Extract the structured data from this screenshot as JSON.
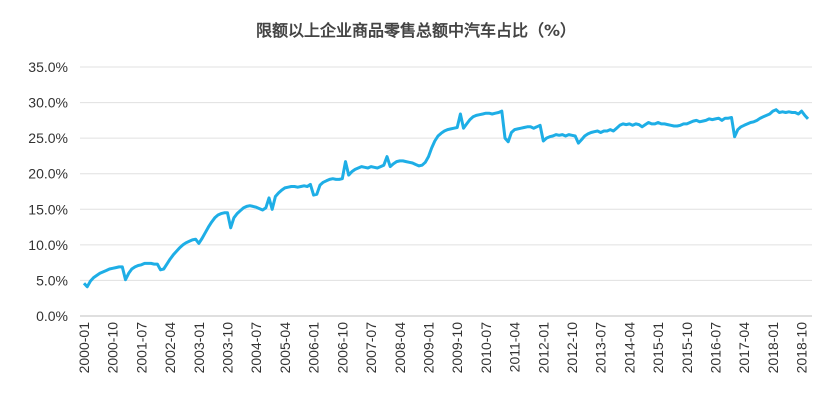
{
  "chart_data": {
    "type": "line",
    "title": "限额以上企业商品零售总额中汽车占比（%）",
    "categories": [
      "2000-01",
      null,
      null,
      null,
      null,
      null,
      null,
      null,
      null,
      "2000-10",
      null,
      null,
      null,
      null,
      null,
      null,
      null,
      null,
      "2001-07",
      null,
      null,
      null,
      null,
      null,
      null,
      null,
      null,
      "2002-04",
      null,
      null,
      null,
      null,
      null,
      null,
      null,
      null,
      "2003-01",
      null,
      null,
      null,
      null,
      null,
      null,
      null,
      null,
      "2003-10",
      null,
      null,
      null,
      null,
      null,
      null,
      null,
      null,
      "2004-07",
      null,
      null,
      null,
      null,
      null,
      null,
      null,
      null,
      "2005-04",
      null,
      null,
      null,
      null,
      null,
      null,
      null,
      null,
      "2006-01",
      null,
      null,
      null,
      null,
      null,
      null,
      null,
      null,
      "2006-10",
      null,
      null,
      null,
      null,
      null,
      null,
      null,
      null,
      "2007-07",
      null,
      null,
      null,
      null,
      null,
      null,
      null,
      null,
      "2008-04",
      null,
      null,
      null,
      null,
      null,
      null,
      null,
      null,
      "2009-01",
      null,
      null,
      null,
      null,
      null,
      null,
      null,
      null,
      "2009-10",
      null,
      null,
      null,
      null,
      null,
      null,
      null,
      null,
      "2010-07",
      null,
      null,
      null,
      null,
      null,
      null,
      null,
      null,
      "2011-04",
      null,
      null,
      null,
      null,
      null,
      null,
      null,
      null,
      "2012-01",
      null,
      null,
      null,
      null,
      null,
      null,
      null,
      null,
      "2012-10",
      null,
      null,
      null,
      null,
      null,
      null,
      null,
      null,
      "2013-07",
      null,
      null,
      null,
      null,
      null,
      null,
      null,
      null,
      "2014-04",
      null,
      null,
      null,
      null,
      null,
      null,
      null,
      null,
      "2015-01",
      null,
      null,
      null,
      null,
      null,
      null,
      null,
      null,
      "2015-10",
      null,
      null,
      null,
      null,
      null,
      null,
      null,
      null,
      "2016-07",
      null,
      null,
      null,
      null,
      null,
      null,
      null,
      null,
      "2017-04",
      null,
      null,
      null,
      null,
      null,
      null,
      null,
      null,
      "2018-01",
      null,
      null,
      null,
      null,
      null,
      null,
      null,
      null,
      "2018-10",
      null,
      null
    ],
    "series": [
      {
        "color": "#1eaee6",
        "values": [
          4.6,
          4.1,
          4.9,
          5.4,
          5.7,
          6.0,
          6.2,
          6.4,
          6.6,
          6.7,
          6.8,
          6.9,
          6.9,
          5.1,
          6.0,
          6.6,
          6.9,
          7.1,
          7.2,
          7.4,
          7.4,
          7.4,
          7.3,
          7.3,
          6.5,
          6.6,
          7.3,
          8.0,
          8.6,
          9.1,
          9.6,
          10.0,
          10.3,
          10.5,
          10.7,
          10.8,
          10.2,
          10.9,
          11.7,
          12.5,
          13.2,
          13.8,
          14.2,
          14.4,
          14.5,
          14.5,
          12.4,
          13.8,
          14.4,
          14.8,
          15.2,
          15.4,
          15.5,
          15.4,
          15.3,
          15.1,
          14.9,
          15.2,
          16.6,
          15.0,
          16.8,
          17.3,
          17.7,
          18.0,
          18.1,
          18.2,
          18.2,
          18.1,
          18.2,
          18.3,
          18.2,
          18.5,
          17.0,
          17.1,
          18.4,
          18.8,
          19.0,
          19.2,
          19.3,
          19.2,
          19.2,
          19.3,
          21.7,
          19.8,
          20.3,
          20.6,
          20.8,
          21.0,
          20.9,
          20.8,
          21.0,
          20.9,
          20.8,
          21.0,
          21.2,
          22.4,
          21.0,
          21.4,
          21.7,
          21.8,
          21.8,
          21.7,
          21.6,
          21.5,
          21.3,
          21.1,
          21.2,
          21.6,
          22.4,
          23.6,
          24.6,
          25.3,
          25.7,
          26.0,
          26.2,
          26.3,
          26.4,
          26.5,
          28.4,
          26.4,
          27.0,
          27.6,
          28.0,
          28.2,
          28.3,
          28.4,
          28.5,
          28.5,
          28.4,
          28.5,
          28.6,
          28.8,
          25.0,
          24.5,
          25.8,
          26.2,
          26.3,
          26.4,
          26.5,
          26.6,
          26.6,
          26.4,
          26.6,
          26.8,
          24.6,
          25.0,
          25.2,
          25.3,
          25.5,
          25.4,
          25.5,
          25.3,
          25.5,
          25.4,
          25.3,
          24.3,
          24.8,
          25.3,
          25.6,
          25.8,
          25.9,
          26.0,
          25.8,
          26.0,
          26.0,
          26.2,
          26.0,
          26.4,
          26.8,
          27.0,
          26.9,
          27.0,
          26.8,
          27.0,
          26.9,
          26.6,
          26.9,
          27.2,
          27.0,
          27.0,
          27.2,
          27.0,
          27.0,
          26.9,
          26.8,
          26.7,
          26.7,
          26.8,
          27.0,
          27.0,
          27.2,
          27.4,
          27.5,
          27.3,
          27.4,
          27.5,
          27.7,
          27.6,
          27.7,
          27.8,
          27.5,
          27.8,
          27.8,
          27.9,
          25.2,
          26.2,
          26.6,
          26.8,
          27.0,
          27.2,
          27.3,
          27.5,
          27.8,
          28.0,
          28.2,
          28.4,
          28.8,
          29.0,
          28.6,
          28.7,
          28.6,
          28.7,
          28.6,
          28.6,
          28.4,
          28.8,
          28.2,
          27.7
        ]
      }
    ],
    "ylim": [
      0,
      35
    ],
    "yticks": [
      {
        "value": 0,
        "label": "0.0%"
      },
      {
        "value": 5,
        "label": "5.0%"
      },
      {
        "value": 10,
        "label": "10.0%"
      },
      {
        "value": 15,
        "label": "15.0%"
      },
      {
        "value": 20,
        "label": "20.0%"
      },
      {
        "value": 25,
        "label": "25.0%"
      },
      {
        "value": 30,
        "label": "30.0%"
      },
      {
        "value": 35,
        "label": "35.0%"
      }
    ],
    "grid": true
  }
}
